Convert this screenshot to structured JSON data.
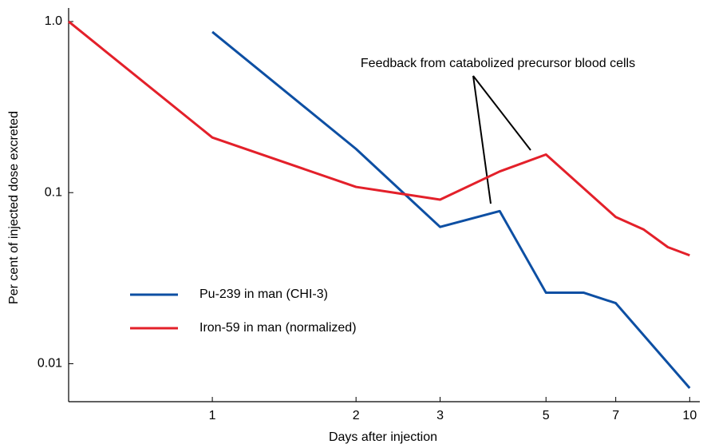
{
  "chart_data": {
    "type": "line",
    "xlabel": "Days after injection",
    "ylabel": "Per cent of injected dose excreted",
    "annotation": "Feedback from catabolized precursor blood cells",
    "xscale": "log",
    "yscale": "log",
    "xlim": [
      0.5,
      10.5
    ],
    "ylim": [
      0.006,
      1.2
    ],
    "xticks": [
      1,
      2,
      3,
      5,
      7,
      10
    ],
    "yticks": [
      {
        "value": 1,
        "label": "1.0"
      },
      0.1,
      0.01
    ],
    "legend": "center left",
    "series": [
      {
        "name": "Pu-239 in man (CHI-3)",
        "color": "#0d4fa3",
        "x": [
          1,
          2,
          3,
          4,
          5,
          6,
          7,
          10
        ],
        "values": [
          0.87,
          0.18,
          0.063,
          0.078,
          0.026,
          0.026,
          0.0226,
          0.0072
        ]
      },
      {
        "name": "Iron-59 in man (normalized)",
        "color": "#e3202a",
        "x": [
          0.5,
          1,
          2,
          3,
          4,
          5,
          7,
          8,
          9,
          10
        ],
        "values": [
          1.0,
          0.21,
          0.108,
          0.091,
          0.133,
          0.167,
          0.072,
          0.061,
          0.048,
          0.043
        ]
      }
    ]
  }
}
